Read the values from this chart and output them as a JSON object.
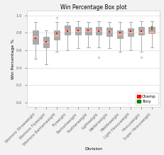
{
  "title": "Win Percentage Box plot",
  "xlabel": "Division",
  "ylabel": "Win Percentage %",
  "ylim": [
    -0.05,
    1.05
  ],
  "yticks": [
    0.0,
    0.2,
    0.4,
    0.6,
    0.8,
    1.0
  ],
  "divisions": [
    "Womens Strawweight",
    "Womens Flyweight",
    "Womens Bantamweight",
    "Flyweight",
    "Bantamweight",
    "Featherweight",
    "Lightweight",
    "Welterweight",
    "Middleweight",
    "Light Heavyweight",
    "Heavyweight",
    "Super Heavyweight"
  ],
  "box_data": [
    {
      "q1": 0.67,
      "median": 0.75,
      "q3": 0.83,
      "whislo": 0.5,
      "whishi": 0.92,
      "fliers": []
    },
    {
      "q1": 0.63,
      "median": 0.69,
      "q3": 0.75,
      "whislo": 0.44,
      "whishi": 0.83,
      "fliers": []
    },
    {
      "q1": 0.72,
      "median": 0.76,
      "q3": 0.83,
      "whislo": 0.58,
      "whishi": 0.92,
      "fliers": []
    },
    {
      "q1": 0.78,
      "median": 0.82,
      "q3": 0.88,
      "whislo": 0.6,
      "whishi": 0.92,
      "fliers": []
    },
    {
      "q1": 0.78,
      "median": 0.82,
      "q3": 0.87,
      "whislo": 0.62,
      "whishi": 0.93,
      "fliers": []
    },
    {
      "q1": 0.78,
      "median": 0.82,
      "q3": 0.86,
      "whislo": 0.63,
      "whishi": 0.92,
      "fliers": []
    },
    {
      "q1": 0.78,
      "median": 0.82,
      "q3": 0.87,
      "whislo": 0.63,
      "whishi": 0.93,
      "fliers": [
        0.52
      ]
    },
    {
      "q1": 0.76,
      "median": 0.81,
      "q3": 0.86,
      "whislo": 0.62,
      "whishi": 0.92,
      "fliers": []
    },
    {
      "q1": 0.74,
      "median": 0.78,
      "q3": 0.83,
      "whislo": 0.58,
      "whishi": 0.92,
      "fliers": []
    },
    {
      "q1": 0.76,
      "median": 0.8,
      "q3": 0.85,
      "whislo": 0.6,
      "whishi": 0.92,
      "fliers": []
    },
    {
      "q1": 0.78,
      "median": 0.8,
      "q3": 0.87,
      "whislo": 0.58,
      "whishi": 0.93,
      "fliers": [
        0.52
      ]
    },
    {
      "q1": 0.79,
      "median": 0.8,
      "q3": 0.87,
      "whislo": 0.63,
      "whishi": 0.93,
      "fliers": []
    }
  ],
  "outlier_high": [
    null,
    null,
    0.97,
    null,
    null,
    null,
    null,
    null,
    null,
    null,
    null,
    null
  ],
  "champ_vals": [
    0.74,
    0.7,
    0.79,
    0.82,
    0.83,
    0.83,
    0.82,
    0.81,
    0.8,
    0.82,
    0.82,
    0.84
  ],
  "tony_vals": [
    null,
    null,
    null,
    null,
    null,
    null,
    null,
    null,
    null,
    null,
    null,
    0.87
  ],
  "bg_color": "#f2f2f2",
  "plot_bg_color": "#ffffff",
  "box_facecolor": "#f5f5f5",
  "box_edgecolor": "#aaaaaa",
  "median_color": "#ffb3a0",
  "whisker_color": "#aaaaaa",
  "cap_color": "#aaaaaa",
  "flier_color": "#aaaaaa",
  "champ_color": "#ff0000",
  "tony_color": "#008000",
  "grid_color": "#dddddd",
  "title_fontsize": 5.5,
  "axis_label_fontsize": 4.5,
  "tick_fontsize": 3.8,
  "legend_fontsize": 4.0
}
